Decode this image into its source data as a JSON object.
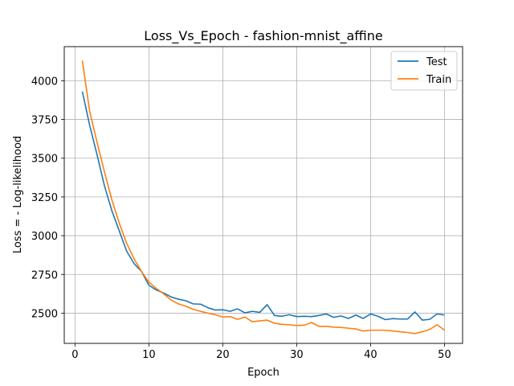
{
  "chart_data": {
    "type": "line",
    "title": "Loss_Vs_Epoch - fashion-mnist_affine",
    "xlabel": "Epoch",
    "ylabel": "Loss = - Log-likelihood",
    "xlim": [
      -1.45,
      52.45
    ],
    "ylim": [
      2305,
      4220
    ],
    "x_ticks": [
      0,
      10,
      20,
      30,
      40,
      50
    ],
    "y_ticks": [
      2500,
      2750,
      3000,
      3250,
      3500,
      3750,
      4000
    ],
    "grid": true,
    "legend_position": "top-right",
    "x": [
      1,
      2,
      3,
      4,
      5,
      6,
      7,
      8,
      9,
      10,
      11,
      12,
      13,
      14,
      15,
      16,
      17,
      18,
      19,
      20,
      21,
      22,
      23,
      24,
      25,
      26,
      27,
      28,
      29,
      30,
      31,
      32,
      33,
      34,
      35,
      36,
      37,
      38,
      39,
      40,
      41,
      42,
      43,
      44,
      45,
      46,
      47,
      48,
      49,
      50
    ],
    "series": [
      {
        "name": "Test",
        "color": "#1f77b4",
        "values": [
          3930,
          3710,
          3520,
          3320,
          3160,
          3030,
          2900,
          2820,
          2770,
          2680,
          2650,
          2630,
          2605,
          2590,
          2580,
          2560,
          2558,
          2535,
          2520,
          2522,
          2512,
          2528,
          2502,
          2512,
          2505,
          2555,
          2485,
          2480,
          2490,
          2478,
          2480,
          2478,
          2485,
          2495,
          2473,
          2482,
          2466,
          2488,
          2466,
          2495,
          2480,
          2458,
          2465,
          2462,
          2462,
          2508,
          2455,
          2460,
          2495,
          2488
        ]
      },
      {
        "name": "Train",
        "color": "#ff7f0e",
        "values": [
          4130,
          3800,
          3600,
          3410,
          3230,
          3080,
          2950,
          2850,
          2770,
          2700,
          2660,
          2625,
          2585,
          2560,
          2545,
          2525,
          2512,
          2500,
          2490,
          2475,
          2478,
          2460,
          2475,
          2445,
          2450,
          2455,
          2435,
          2428,
          2425,
          2420,
          2422,
          2440,
          2415,
          2415,
          2410,
          2408,
          2403,
          2398,
          2385,
          2390,
          2390,
          2390,
          2385,
          2380,
          2375,
          2368,
          2380,
          2395,
          2425,
          2390
        ]
      }
    ]
  }
}
